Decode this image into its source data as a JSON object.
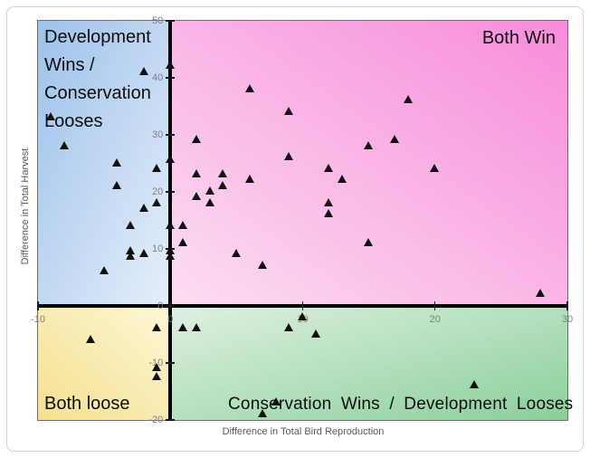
{
  "chart_data": {
    "type": "scatter",
    "title": "",
    "xlabel": "Difference in Total Bird Reproduction",
    "ylabel": "Difference in Total Harvest",
    "xlim": [
      -10,
      30
    ],
    "ylim": [
      -20,
      50
    ],
    "x_ticks": [
      -10,
      0,
      10,
      20,
      30
    ],
    "y_ticks": [
      50,
      40,
      30,
      20,
      10,
      0,
      -10,
      -20
    ],
    "grid": false,
    "legend": "none",
    "marker_shape": "filled-triangle-up",
    "marker_color": "#111111",
    "axis_color": "#000000",
    "tick_label_color": "#7f7f7f",
    "axis_title_color": "#595959",
    "points": [
      [
        -9,
        33
      ],
      [
        -8,
        28
      ],
      [
        -6,
        -6
      ],
      [
        -5,
        6
      ],
      [
        -4,
        25
      ],
      [
        -4,
        21
      ],
      [
        -3,
        14
      ],
      [
        -3,
        9.5
      ],
      [
        -3,
        8.5
      ],
      [
        -2,
        41
      ],
      [
        -2,
        17
      ],
      [
        -2,
        9
      ],
      [
        -1,
        24
      ],
      [
        -1,
        18
      ],
      [
        -1,
        -4
      ],
      [
        -1,
        -11
      ],
      [
        -1,
        -12.5
      ],
      [
        0,
        42
      ],
      [
        0,
        25.5
      ],
      [
        0,
        14
      ],
      [
        0,
        9.5
      ],
      [
        0,
        8.5
      ],
      [
        1,
        14
      ],
      [
        1,
        11
      ],
      [
        1,
        -4
      ],
      [
        2,
        29
      ],
      [
        2,
        23
      ],
      [
        2,
        19
      ],
      [
        2,
        -4
      ],
      [
        3,
        20
      ],
      [
        3,
        18
      ],
      [
        4,
        23
      ],
      [
        4,
        21
      ],
      [
        5,
        9
      ],
      [
        6,
        38
      ],
      [
        6,
        22
      ],
      [
        7,
        7
      ],
      [
        7,
        -19
      ],
      [
        8,
        -17
      ],
      [
        9,
        34
      ],
      [
        9,
        26
      ],
      [
        9,
        -4
      ],
      [
        10,
        -2
      ],
      [
        11,
        -5
      ],
      [
        12,
        24
      ],
      [
        12,
        18
      ],
      [
        12,
        16
      ],
      [
        13,
        22
      ],
      [
        15,
        28
      ],
      [
        15,
        11
      ],
      [
        17,
        29
      ],
      [
        18,
        36
      ],
      [
        20,
        24
      ],
      [
        23,
        -14
      ],
      [
        28,
        2
      ]
    ],
    "quadrants": {
      "top_left": {
        "label": "Development Wins / Conservation Looses",
        "gradient": [
          "#9dc1e9",
          "#e6effb"
        ]
      },
      "top_right": {
        "label": "Both Win",
        "gradient": [
          "#f78cdb",
          "#fcdef1"
        ]
      },
      "bottom_left": {
        "label": "Both loose",
        "gradient": [
          "#f4e08e",
          "#fdf7d6"
        ]
      },
      "bottom_right": {
        "label": "Conservation Wins / Development Looses",
        "gradient": [
          "#8bcf9a",
          "#def1e1"
        ]
      }
    }
  }
}
